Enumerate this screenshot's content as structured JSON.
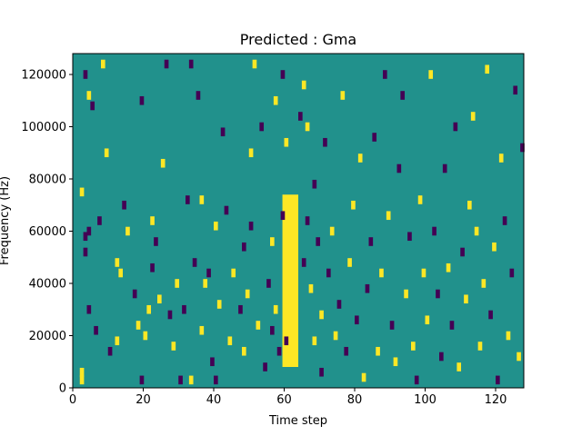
{
  "chart_data": {
    "type": "heatmap",
    "title": "Predicted : Gma",
    "xlabel": "Time step",
    "ylabel": "Frequency (Hz)",
    "xlim": [
      0,
      128
    ],
    "ylim": [
      0,
      128000
    ],
    "x_ticks": [
      0,
      20,
      40,
      60,
      80,
      100,
      120
    ],
    "x_tick_labels": [
      "0",
      "20",
      "40",
      "60",
      "80",
      "100",
      "120"
    ],
    "y_ticks": [
      0,
      20000,
      40000,
      60000,
      80000,
      100000,
      120000
    ],
    "y_tick_labels": [
      "0",
      "20000",
      "40000",
      "60000",
      "80000",
      "100000",
      "120000"
    ],
    "grid": false,
    "colormap": "viridis",
    "colors": {
      "background": "#21918c",
      "high": "#fde725",
      "low": "#440154"
    },
    "yellow_band": {
      "x_range": [
        59.5,
        64
      ],
      "y_range": [
        8000,
        74000
      ]
    },
    "cells": [
      {
        "x": 2,
        "y": 3000,
        "c": "high"
      },
      {
        "x": 2,
        "y": 6000,
        "c": "high"
      },
      {
        "x": 3,
        "y": 52000,
        "c": "low"
      },
      {
        "x": 3,
        "y": 58000,
        "c": "low"
      },
      {
        "x": 4,
        "y": 60000,
        "c": "low"
      },
      {
        "x": 2,
        "y": 75000,
        "c": "high"
      },
      {
        "x": 3,
        "y": 120000,
        "c": "low"
      },
      {
        "x": 4,
        "y": 112000,
        "c": "high"
      },
      {
        "x": 5,
        "y": 108000,
        "c": "low"
      },
      {
        "x": 4,
        "y": 30000,
        "c": "low"
      },
      {
        "x": 6,
        "y": 22000,
        "c": "low"
      },
      {
        "x": 7,
        "y": 64000,
        "c": "low"
      },
      {
        "x": 8,
        "y": 124000,
        "c": "high"
      },
      {
        "x": 9,
        "y": 90000,
        "c": "high"
      },
      {
        "x": 10,
        "y": 14000,
        "c": "low"
      },
      {
        "x": 12,
        "y": 48000,
        "c": "high"
      },
      {
        "x": 13,
        "y": 44000,
        "c": "high"
      },
      {
        "x": 12,
        "y": 18000,
        "c": "high"
      },
      {
        "x": 14,
        "y": 70000,
        "c": "low"
      },
      {
        "x": 15,
        "y": 60000,
        "c": "high"
      },
      {
        "x": 17,
        "y": 36000,
        "c": "low"
      },
      {
        "x": 18,
        "y": 24000,
        "c": "high"
      },
      {
        "x": 19,
        "y": 3000,
        "c": "low"
      },
      {
        "x": 19,
        "y": 110000,
        "c": "low"
      },
      {
        "x": 20,
        "y": 20000,
        "c": "high"
      },
      {
        "x": 21,
        "y": 30000,
        "c": "high"
      },
      {
        "x": 22,
        "y": 46000,
        "c": "low"
      },
      {
        "x": 22,
        "y": 64000,
        "c": "high"
      },
      {
        "x": 23,
        "y": 56000,
        "c": "low"
      },
      {
        "x": 24,
        "y": 34000,
        "c": "high"
      },
      {
        "x": 25,
        "y": 86000,
        "c": "high"
      },
      {
        "x": 26,
        "y": 124000,
        "c": "low"
      },
      {
        "x": 27,
        "y": 28000,
        "c": "low"
      },
      {
        "x": 28,
        "y": 16000,
        "c": "high"
      },
      {
        "x": 29,
        "y": 40000,
        "c": "high"
      },
      {
        "x": 30,
        "y": 3000,
        "c": "low"
      },
      {
        "x": 31,
        "y": 30000,
        "c": "low"
      },
      {
        "x": 32,
        "y": 72000,
        "c": "low"
      },
      {
        "x": 33,
        "y": 124000,
        "c": "low"
      },
      {
        "x": 33,
        "y": 3000,
        "c": "high"
      },
      {
        "x": 34,
        "y": 48000,
        "c": "low"
      },
      {
        "x": 35,
        "y": 112000,
        "c": "low"
      },
      {
        "x": 36,
        "y": 22000,
        "c": "high"
      },
      {
        "x": 36,
        "y": 72000,
        "c": "high"
      },
      {
        "x": 37,
        "y": 40000,
        "c": "high"
      },
      {
        "x": 38,
        "y": 44000,
        "c": "low"
      },
      {
        "x": 39,
        "y": 10000,
        "c": "low"
      },
      {
        "x": 40,
        "y": 3000,
        "c": "low"
      },
      {
        "x": 40,
        "y": 62000,
        "c": "high"
      },
      {
        "x": 41,
        "y": 32000,
        "c": "high"
      },
      {
        "x": 42,
        "y": 98000,
        "c": "low"
      },
      {
        "x": 43,
        "y": 68000,
        "c": "low"
      },
      {
        "x": 44,
        "y": 18000,
        "c": "high"
      },
      {
        "x": 45,
        "y": 44000,
        "c": "high"
      },
      {
        "x": 47,
        "y": 30000,
        "c": "low"
      },
      {
        "x": 48,
        "y": 14000,
        "c": "high"
      },
      {
        "x": 48,
        "y": 54000,
        "c": "low"
      },
      {
        "x": 49,
        "y": 36000,
        "c": "high"
      },
      {
        "x": 50,
        "y": 62000,
        "c": "low"
      },
      {
        "x": 50,
        "y": 90000,
        "c": "high"
      },
      {
        "x": 51,
        "y": 124000,
        "c": "high"
      },
      {
        "x": 52,
        "y": 24000,
        "c": "high"
      },
      {
        "x": 53,
        "y": 100000,
        "c": "low"
      },
      {
        "x": 54,
        "y": 8000,
        "c": "low"
      },
      {
        "x": 55,
        "y": 40000,
        "c": "low"
      },
      {
        "x": 56,
        "y": 56000,
        "c": "high"
      },
      {
        "x": 56,
        "y": 22000,
        "c": "low"
      },
      {
        "x": 57,
        "y": 110000,
        "c": "high"
      },
      {
        "x": 57,
        "y": 30000,
        "c": "high"
      },
      {
        "x": 58,
        "y": 14000,
        "c": "low"
      },
      {
        "x": 59,
        "y": 66000,
        "c": "low"
      },
      {
        "x": 59,
        "y": 120000,
        "c": "low"
      },
      {
        "x": 60,
        "y": 94000,
        "c": "high"
      },
      {
        "x": 60,
        "y": 18000,
        "c": "low"
      },
      {
        "x": 64,
        "y": 104000,
        "c": "low"
      },
      {
        "x": 65,
        "y": 48000,
        "c": "low"
      },
      {
        "x": 65,
        "y": 116000,
        "c": "high"
      },
      {
        "x": 66,
        "y": 100000,
        "c": "high"
      },
      {
        "x": 66,
        "y": 64000,
        "c": "low"
      },
      {
        "x": 67,
        "y": 38000,
        "c": "high"
      },
      {
        "x": 68,
        "y": 18000,
        "c": "high"
      },
      {
        "x": 68,
        "y": 78000,
        "c": "low"
      },
      {
        "x": 69,
        "y": 56000,
        "c": "low"
      },
      {
        "x": 70,
        "y": 6000,
        "c": "low"
      },
      {
        "x": 70,
        "y": 28000,
        "c": "high"
      },
      {
        "x": 71,
        "y": 94000,
        "c": "low"
      },
      {
        "x": 72,
        "y": 44000,
        "c": "low"
      },
      {
        "x": 73,
        "y": 60000,
        "c": "high"
      },
      {
        "x": 74,
        "y": 20000,
        "c": "high"
      },
      {
        "x": 75,
        "y": 32000,
        "c": "low"
      },
      {
        "x": 76,
        "y": 112000,
        "c": "high"
      },
      {
        "x": 77,
        "y": 14000,
        "c": "low"
      },
      {
        "x": 78,
        "y": 48000,
        "c": "high"
      },
      {
        "x": 79,
        "y": 70000,
        "c": "high"
      },
      {
        "x": 80,
        "y": 26000,
        "c": "low"
      },
      {
        "x": 81,
        "y": 88000,
        "c": "high"
      },
      {
        "x": 82,
        "y": 4000,
        "c": "high"
      },
      {
        "x": 83,
        "y": 38000,
        "c": "low"
      },
      {
        "x": 84,
        "y": 56000,
        "c": "low"
      },
      {
        "x": 85,
        "y": 96000,
        "c": "low"
      },
      {
        "x": 86,
        "y": 14000,
        "c": "high"
      },
      {
        "x": 87,
        "y": 44000,
        "c": "high"
      },
      {
        "x": 88,
        "y": 120000,
        "c": "low"
      },
      {
        "x": 89,
        "y": 66000,
        "c": "high"
      },
      {
        "x": 90,
        "y": 24000,
        "c": "low"
      },
      {
        "x": 91,
        "y": 10000,
        "c": "high"
      },
      {
        "x": 92,
        "y": 84000,
        "c": "low"
      },
      {
        "x": 93,
        "y": 112000,
        "c": "low"
      },
      {
        "x": 94,
        "y": 36000,
        "c": "high"
      },
      {
        "x": 95,
        "y": 58000,
        "c": "low"
      },
      {
        "x": 96,
        "y": 16000,
        "c": "high"
      },
      {
        "x": 97,
        "y": 3000,
        "c": "low"
      },
      {
        "x": 98,
        "y": 72000,
        "c": "high"
      },
      {
        "x": 99,
        "y": 44000,
        "c": "high"
      },
      {
        "x": 100,
        "y": 26000,
        "c": "high"
      },
      {
        "x": 101,
        "y": 120000,
        "c": "high"
      },
      {
        "x": 102,
        "y": 60000,
        "c": "low"
      },
      {
        "x": 103,
        "y": 36000,
        "c": "low"
      },
      {
        "x": 104,
        "y": 12000,
        "c": "low"
      },
      {
        "x": 105,
        "y": 84000,
        "c": "low"
      },
      {
        "x": 106,
        "y": 46000,
        "c": "high"
      },
      {
        "x": 107,
        "y": 24000,
        "c": "low"
      },
      {
        "x": 108,
        "y": 100000,
        "c": "low"
      },
      {
        "x": 109,
        "y": 8000,
        "c": "high"
      },
      {
        "x": 110,
        "y": 52000,
        "c": "low"
      },
      {
        "x": 111,
        "y": 34000,
        "c": "high"
      },
      {
        "x": 112,
        "y": 70000,
        "c": "high"
      },
      {
        "x": 113,
        "y": 104000,
        "c": "high"
      },
      {
        "x": 114,
        "y": 60000,
        "c": "high"
      },
      {
        "x": 115,
        "y": 16000,
        "c": "high"
      },
      {
        "x": 116,
        "y": 40000,
        "c": "high"
      },
      {
        "x": 117,
        "y": 122000,
        "c": "high"
      },
      {
        "x": 118,
        "y": 28000,
        "c": "low"
      },
      {
        "x": 119,
        "y": 54000,
        "c": "high"
      },
      {
        "x": 120,
        "y": 3000,
        "c": "low"
      },
      {
        "x": 121,
        "y": 88000,
        "c": "high"
      },
      {
        "x": 122,
        "y": 64000,
        "c": "low"
      },
      {
        "x": 123,
        "y": 20000,
        "c": "high"
      },
      {
        "x": 124,
        "y": 44000,
        "c": "low"
      },
      {
        "x": 125,
        "y": 114000,
        "c": "low"
      },
      {
        "x": 126,
        "y": 12000,
        "c": "high"
      },
      {
        "x": 127,
        "y": 92000,
        "c": "low"
      }
    ]
  }
}
